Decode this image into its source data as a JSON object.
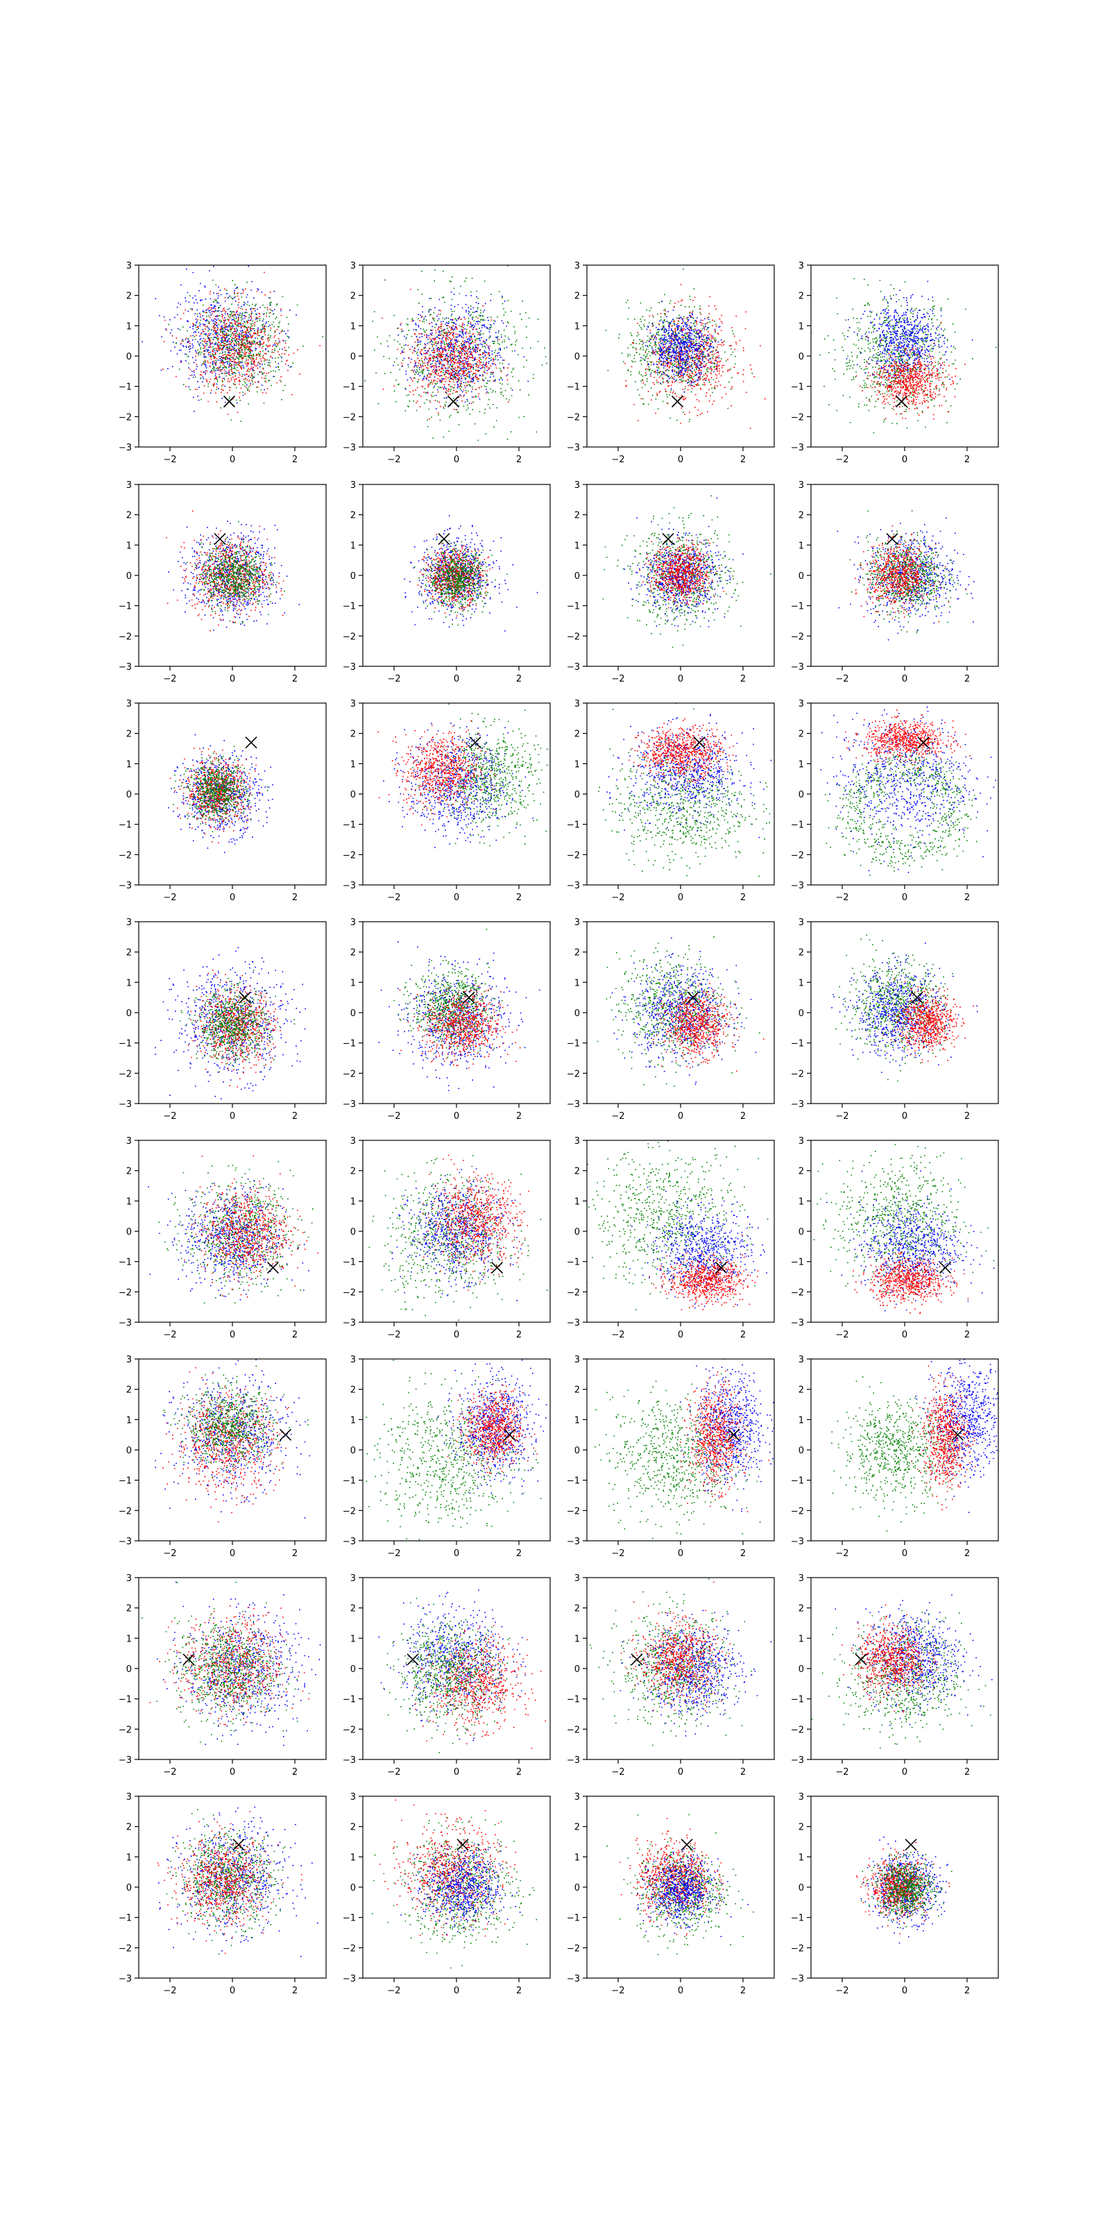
{
  "figure": {
    "rows": 8,
    "cols": 4,
    "background": "#ffffff"
  },
  "colors": {
    "blue": "#0000ff",
    "green": "#008000",
    "red": "#ff0000",
    "marker": "#000000",
    "axes": "#000000"
  },
  "chart_data": {
    "type": "scatter",
    "title": "",
    "xlabel": "",
    "ylabel": "",
    "xlim": [
      -3,
      3
    ],
    "ylim": [
      -3,
      3
    ],
    "x_ticks": [
      -2,
      0,
      2
    ],
    "y_ticks": [
      -3,
      -2,
      -1,
      0,
      1,
      2,
      3
    ],
    "x_tick_labels": [
      "−2",
      "0",
      "2"
    ],
    "y_tick_labels": [
      "−3",
      "−2",
      "−1",
      "0",
      "1",
      "2",
      "3"
    ],
    "grid": false,
    "legend": "none",
    "series_colors": [
      "blue",
      "green",
      "red"
    ],
    "marker_symbol": "x",
    "panels": [
      {
        "row": 1,
        "col": 1,
        "marker": [
          -0.1,
          -1.5
        ],
        "clusters": [
          {
            "c": "blue",
            "mx": -0.3,
            "my": 0.6,
            "sx": 0.8,
            "sy": 0.8
          },
          {
            "c": "green",
            "mx": 0.2,
            "my": 0.4,
            "sx": 0.75,
            "sy": 0.75
          },
          {
            "c": "red",
            "mx": 0.1,
            "my": 0.3,
            "sx": 0.75,
            "sy": 0.75
          }
        ]
      },
      {
        "row": 1,
        "col": 2,
        "marker": [
          -0.1,
          -1.5
        ],
        "clusters": [
          {
            "c": "green",
            "mx": 0.0,
            "my": 0.0,
            "sx": 1.1,
            "sy": 1.1
          },
          {
            "c": "blue",
            "mx": 0.0,
            "my": 0.2,
            "sx": 0.75,
            "sy": 0.75
          },
          {
            "c": "red",
            "mx": -0.2,
            "my": -0.1,
            "sx": 0.65,
            "sy": 0.65
          }
        ]
      },
      {
        "row": 1,
        "col": 3,
        "marker": [
          -0.1,
          -1.5
        ],
        "clusters": [
          {
            "c": "green",
            "mx": -0.2,
            "my": 0.2,
            "sx": 0.75,
            "sy": 0.75
          },
          {
            "c": "red",
            "mx": 0.3,
            "my": -0.1,
            "sx": 0.75,
            "sy": 0.75
          },
          {
            "c": "blue",
            "mx": 0.0,
            "my": 0.3,
            "sx": 0.5,
            "sy": 0.5
          }
        ]
      },
      {
        "row": 1,
        "col": 4,
        "marker": [
          -0.1,
          -1.5
        ],
        "clusters": [
          {
            "c": "green",
            "mx": -0.3,
            "my": 0.0,
            "sx": 0.9,
            "sy": 0.9
          },
          {
            "c": "blue",
            "mx": 0.0,
            "my": 0.5,
            "sx": 0.6,
            "sy": 0.6
          },
          {
            "c": "red",
            "mx": 0.1,
            "my": -0.8,
            "sx": 0.55,
            "sy": 0.45
          }
        ]
      },
      {
        "row": 2,
        "col": 1,
        "marker": [
          -0.4,
          1.2
        ],
        "clusters": [
          {
            "c": "blue",
            "mx": 0.0,
            "my": 0.0,
            "sx": 0.7,
            "sy": 0.7
          },
          {
            "c": "red",
            "mx": -0.1,
            "my": 0.0,
            "sx": 0.6,
            "sy": 0.6
          },
          {
            "c": "green",
            "mx": 0.0,
            "my": 0.0,
            "sx": 0.5,
            "sy": 0.5
          }
        ]
      },
      {
        "row": 2,
        "col": 2,
        "marker": [
          -0.4,
          1.2
        ],
        "clusters": [
          {
            "c": "blue",
            "mx": 0.0,
            "my": 0.0,
            "sx": 0.6,
            "sy": 0.6
          },
          {
            "c": "red",
            "mx": -0.1,
            "my": 0.0,
            "sx": 0.45,
            "sy": 0.45
          },
          {
            "c": "green",
            "mx": 0.0,
            "my": -0.1,
            "sx": 0.45,
            "sy": 0.45
          }
        ]
      },
      {
        "row": 2,
        "col": 3,
        "marker": [
          -0.4,
          1.2
        ],
        "clusters": [
          {
            "c": "green",
            "mx": 0.0,
            "my": 0.0,
            "sx": 0.8,
            "sy": 0.8
          },
          {
            "c": "blue",
            "mx": 0.0,
            "my": 0.0,
            "sx": 0.6,
            "sy": 0.6
          },
          {
            "c": "red",
            "mx": 0.0,
            "my": 0.1,
            "sx": 0.45,
            "sy": 0.45
          }
        ]
      },
      {
        "row": 2,
        "col": 4,
        "marker": [
          -0.4,
          1.2
        ],
        "clusters": [
          {
            "c": "blue",
            "mx": 0.2,
            "my": 0.0,
            "sx": 0.7,
            "sy": 0.7
          },
          {
            "c": "green",
            "mx": 0.0,
            "my": 0.0,
            "sx": 0.6,
            "sy": 0.6
          },
          {
            "c": "red",
            "mx": -0.2,
            "my": 0.0,
            "sx": 0.5,
            "sy": 0.5
          }
        ]
      },
      {
        "row": 3,
        "col": 1,
        "marker": [
          0.6,
          1.7
        ],
        "clusters": [
          {
            "c": "blue",
            "mx": -0.4,
            "my": 0.0,
            "sx": 0.65,
            "sy": 0.65
          },
          {
            "c": "red",
            "mx": -0.5,
            "my": 0.1,
            "sx": 0.5,
            "sy": 0.5
          },
          {
            "c": "green",
            "mx": -0.5,
            "my": 0.1,
            "sx": 0.45,
            "sy": 0.45
          }
        ]
      },
      {
        "row": 3,
        "col": 2,
        "marker": [
          0.6,
          1.7
        ],
        "clusters": [
          {
            "c": "green",
            "mx": 1.0,
            "my": 0.6,
            "sx": 0.8,
            "sy": 0.8
          },
          {
            "c": "blue",
            "mx": 0.0,
            "my": 0.3,
            "sx": 0.8,
            "sy": 0.8
          },
          {
            "c": "red",
            "mx": -0.5,
            "my": 0.8,
            "sx": 0.6,
            "sy": 0.6
          }
        ]
      },
      {
        "row": 3,
        "col": 3,
        "marker": [
          0.6,
          1.7
        ],
        "clusters": [
          {
            "c": "green",
            "mx": 0.0,
            "my": -0.4,
            "sx": 1.1,
            "sy": 0.9
          },
          {
            "c": "blue",
            "mx": 0.2,
            "my": 0.7,
            "sx": 0.9,
            "sy": 0.7
          },
          {
            "c": "red",
            "mx": 0.0,
            "my": 1.4,
            "sx": 0.65,
            "sy": 0.4
          }
        ]
      },
      {
        "row": 3,
        "col": 4,
        "marker": [
          0.6,
          1.7
        ],
        "ring": true,
        "clusters": [
          {
            "c": "green",
            "mx": 0.0,
            "my": -0.5,
            "sx": 1.4,
            "sy": 1.1
          },
          {
            "c": "blue",
            "mx": 0.0,
            "my": 0.5,
            "sx": 1.1,
            "sy": 1.0
          },
          {
            "c": "red",
            "mx": 0.0,
            "my": 1.8,
            "sx": 0.65,
            "sy": 0.3
          }
        ]
      },
      {
        "row": 4,
        "col": 1,
        "marker": [
          0.4,
          0.5
        ],
        "clusters": [
          {
            "c": "blue",
            "mx": 0.0,
            "my": -0.3,
            "sx": 0.9,
            "sy": 0.9
          },
          {
            "c": "red",
            "mx": 0.1,
            "my": -0.4,
            "sx": 0.6,
            "sy": 0.6
          },
          {
            "c": "green",
            "mx": 0.0,
            "my": -0.4,
            "sx": 0.55,
            "sy": 0.55
          }
        ]
      },
      {
        "row": 4,
        "col": 2,
        "marker": [
          0.4,
          0.5
        ],
        "clusters": [
          {
            "c": "blue",
            "mx": 0.0,
            "my": -0.2,
            "sx": 0.8,
            "sy": 0.8
          },
          {
            "c": "green",
            "mx": -0.2,
            "my": 0.2,
            "sx": 0.6,
            "sy": 0.6
          },
          {
            "c": "red",
            "mx": 0.2,
            "my": -0.4,
            "sx": 0.6,
            "sy": 0.55
          }
        ]
      },
      {
        "row": 4,
        "col": 3,
        "marker": [
          0.4,
          0.5
        ],
        "clusters": [
          {
            "c": "green",
            "mx": -0.3,
            "my": 0.2,
            "sx": 0.85,
            "sy": 0.85
          },
          {
            "c": "blue",
            "mx": 0.0,
            "my": 0.0,
            "sx": 0.75,
            "sy": 0.75
          },
          {
            "c": "red",
            "mx": 0.5,
            "my": -0.4,
            "sx": 0.5,
            "sy": 0.5
          }
        ]
      },
      {
        "row": 4,
        "col": 4,
        "marker": [
          0.4,
          0.5
        ],
        "clusters": [
          {
            "c": "green",
            "mx": -0.3,
            "my": 0.3,
            "sx": 0.75,
            "sy": 0.75
          },
          {
            "c": "blue",
            "mx": -0.2,
            "my": 0.0,
            "sx": 0.7,
            "sy": 0.7
          },
          {
            "c": "red",
            "mx": 0.7,
            "my": -0.3,
            "sx": 0.45,
            "sy": 0.45
          }
        ]
      },
      {
        "row": 5,
        "col": 1,
        "marker": [
          1.3,
          -1.2
        ],
        "clusters": [
          {
            "c": "green",
            "mx": 0.2,
            "my": 0.0,
            "sx": 0.85,
            "sy": 0.85
          },
          {
            "c": "blue",
            "mx": 0.0,
            "my": -0.2,
            "sx": 0.8,
            "sy": 0.8
          },
          {
            "c": "red",
            "mx": 0.4,
            "my": 0.0,
            "sx": 0.7,
            "sy": 0.7
          }
        ]
      },
      {
        "row": 5,
        "col": 2,
        "marker": [
          1.3,
          -1.2
        ],
        "clusters": [
          {
            "c": "green",
            "mx": -0.3,
            "my": -0.2,
            "sx": 1.0,
            "sy": 1.0
          },
          {
            "c": "blue",
            "mx": 0.0,
            "my": 0.0,
            "sx": 0.75,
            "sy": 0.75
          },
          {
            "c": "red",
            "mx": 0.6,
            "my": 0.4,
            "sx": 0.7,
            "sy": 0.7
          }
        ]
      },
      {
        "row": 5,
        "col": 3,
        "marker": [
          1.3,
          -1.2
        ],
        "clusters": [
          {
            "c": "green",
            "mx": -0.5,
            "my": 0.5,
            "sx": 1.2,
            "sy": 1.1
          },
          {
            "c": "blue",
            "mx": 0.7,
            "my": -0.6,
            "sx": 0.75,
            "sy": 0.65
          },
          {
            "c": "red",
            "mx": 0.8,
            "my": -1.6,
            "sx": 0.6,
            "sy": 0.35
          }
        ]
      },
      {
        "row": 5,
        "col": 4,
        "marker": [
          1.3,
          -1.2
        ],
        "clusters": [
          {
            "c": "green",
            "mx": -0.2,
            "my": 0.4,
            "sx": 1.0,
            "sy": 1.0
          },
          {
            "c": "blue",
            "mx": 0.2,
            "my": -0.5,
            "sx": 0.8,
            "sy": 0.7
          },
          {
            "c": "red",
            "mx": 0.1,
            "my": -1.6,
            "sx": 0.6,
            "sy": 0.35
          }
        ]
      },
      {
        "row": 6,
        "col": 1,
        "marker": [
          1.7,
          0.5
        ],
        "clusters": [
          {
            "c": "blue",
            "mx": 0.0,
            "my": 0.5,
            "sx": 0.9,
            "sy": 0.9
          },
          {
            "c": "red",
            "mx": -0.2,
            "my": 0.3,
            "sx": 0.8,
            "sy": 0.8
          },
          {
            "c": "green",
            "mx": -0.1,
            "my": 0.8,
            "sx": 0.7,
            "sy": 0.6
          }
        ]
      },
      {
        "row": 6,
        "col": 2,
        "marker": [
          1.7,
          0.5
        ],
        "clusters": [
          {
            "c": "green",
            "mx": -0.3,
            "my": -0.3,
            "sx": 1.1,
            "sy": 1.1
          },
          {
            "c": "blue",
            "mx": 1.2,
            "my": 0.8,
            "sx": 0.6,
            "sy": 0.8
          },
          {
            "c": "red",
            "mx": 1.2,
            "my": 0.7,
            "sx": 0.45,
            "sy": 0.6
          }
        ]
      },
      {
        "row": 6,
        "col": 3,
        "marker": [
          1.7,
          0.5
        ],
        "clusters": [
          {
            "c": "green",
            "mx": -0.3,
            "my": -0.2,
            "sx": 1.0,
            "sy": 1.0
          },
          {
            "c": "blue",
            "mx": 1.6,
            "my": 0.8,
            "sx": 0.55,
            "sy": 0.9
          },
          {
            "c": "red",
            "mx": 1.1,
            "my": 0.4,
            "sx": 0.4,
            "sy": 0.8
          }
        ]
      },
      {
        "row": 6,
        "col": 4,
        "marker": [
          1.7,
          0.5
        ],
        "clusters": [
          {
            "c": "green",
            "mx": -0.3,
            "my": 0.0,
            "sx": 0.85,
            "sy": 0.8
          },
          {
            "c": "blue",
            "mx": 2.0,
            "my": 1.0,
            "sx": 0.55,
            "sy": 0.9
          },
          {
            "c": "red",
            "mx": 1.3,
            "my": 0.4,
            "sx": 0.35,
            "sy": 0.8
          }
        ]
      },
      {
        "row": 7,
        "col": 1,
        "marker": [
          -1.4,
          0.3
        ],
        "clusters": [
          {
            "c": "blue",
            "mx": 0.3,
            "my": 0.0,
            "sx": 0.9,
            "sy": 0.9
          },
          {
            "c": "red",
            "mx": 0.0,
            "my": 0.1,
            "sx": 0.8,
            "sy": 0.8
          },
          {
            "c": "green",
            "mx": -0.2,
            "my": 0.0,
            "sx": 0.8,
            "sy": 0.8
          }
        ]
      },
      {
        "row": 7,
        "col": 2,
        "marker": [
          -1.4,
          0.3
        ],
        "clusters": [
          {
            "c": "blue",
            "mx": 0.0,
            "my": 0.3,
            "sx": 0.85,
            "sy": 0.85
          },
          {
            "c": "red",
            "mx": 0.6,
            "my": -0.5,
            "sx": 0.7,
            "sy": 0.7
          },
          {
            "c": "green",
            "mx": -0.3,
            "my": -0.1,
            "sx": 0.8,
            "sy": 0.8
          }
        ]
      },
      {
        "row": 7,
        "col": 3,
        "marker": [
          -1.4,
          0.3
        ],
        "clusters": [
          {
            "c": "green",
            "mx": -0.2,
            "my": 0.0,
            "sx": 0.9,
            "sy": 0.9
          },
          {
            "c": "blue",
            "mx": 0.4,
            "my": 0.0,
            "sx": 0.75,
            "sy": 0.75
          },
          {
            "c": "red",
            "mx": -0.1,
            "my": 0.3,
            "sx": 0.6,
            "sy": 0.6
          }
        ]
      },
      {
        "row": 7,
        "col": 4,
        "marker": [
          -1.4,
          0.3
        ],
        "clusters": [
          {
            "c": "green",
            "mx": 0.0,
            "my": -0.3,
            "sx": 0.9,
            "sy": 0.9
          },
          {
            "c": "blue",
            "mx": 0.3,
            "my": 0.4,
            "sx": 0.75,
            "sy": 0.75
          },
          {
            "c": "red",
            "mx": -0.4,
            "my": 0.3,
            "sx": 0.55,
            "sy": 0.55
          }
        ]
      },
      {
        "row": 8,
        "col": 1,
        "marker": [
          0.2,
          1.4
        ],
        "clusters": [
          {
            "c": "blue",
            "mx": 0.0,
            "my": 0.3,
            "sx": 0.85,
            "sy": 0.85
          },
          {
            "c": "green",
            "mx": -0.2,
            "my": 0.3,
            "sx": 0.75,
            "sy": 0.75
          },
          {
            "c": "red",
            "mx": -0.3,
            "my": 0.2,
            "sx": 0.7,
            "sy": 0.7
          }
        ]
      },
      {
        "row": 8,
        "col": 2,
        "marker": [
          0.2,
          1.4
        ],
        "clusters": [
          {
            "c": "green",
            "mx": 0.1,
            "my": 0.0,
            "sx": 0.9,
            "sy": 0.9
          },
          {
            "c": "red",
            "mx": -0.2,
            "my": 0.5,
            "sx": 0.75,
            "sy": 0.75
          },
          {
            "c": "blue",
            "mx": 0.2,
            "my": 0.0,
            "sx": 0.6,
            "sy": 0.6
          }
        ]
      },
      {
        "row": 8,
        "col": 3,
        "marker": [
          0.2,
          1.4
        ],
        "clusters": [
          {
            "c": "green",
            "mx": 0.0,
            "my": -0.1,
            "sx": 0.7,
            "sy": 0.7
          },
          {
            "c": "red",
            "mx": -0.2,
            "my": 0.3,
            "sx": 0.6,
            "sy": 0.6
          },
          {
            "c": "blue",
            "mx": 0.0,
            "my": -0.1,
            "sx": 0.5,
            "sy": 0.5
          }
        ]
      },
      {
        "row": 8,
        "col": 4,
        "marker": [
          0.2,
          1.4
        ],
        "clusters": [
          {
            "c": "blue",
            "mx": 0.0,
            "my": 0.0,
            "sx": 0.55,
            "sy": 0.55
          },
          {
            "c": "red",
            "mx": -0.2,
            "my": 0.0,
            "sx": 0.45,
            "sy": 0.45
          },
          {
            "c": "green",
            "mx": 0.0,
            "my": 0.0,
            "sx": 0.45,
            "sy": 0.45
          }
        ]
      }
    ]
  }
}
